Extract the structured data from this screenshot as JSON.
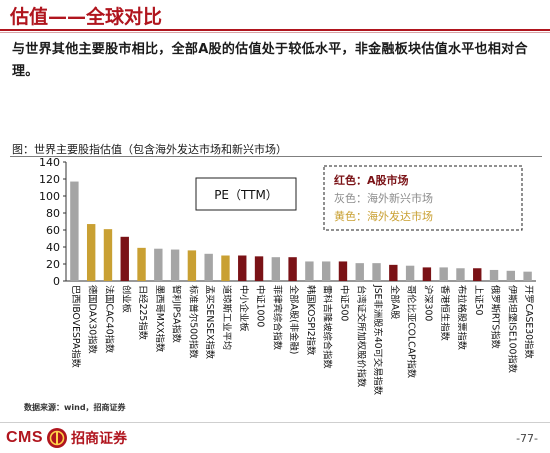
{
  "title": "估值——全球对比",
  "summary": "与世界其他主要股市相比，全部A股的估值处于较低水平，非金融板块估值水平也相对合理。",
  "chart_caption": "图：世界主要股指估值（包含海外发达市场和新兴市场）",
  "pe_label": "PE（TTM）",
  "legend": [
    {
      "label": "红色：A股市场",
      "color": "#7a1216"
    },
    {
      "label": "灰色：海外新兴市场",
      "color": "#8c8c8c"
    },
    {
      "label": "黄色：海外发达市场",
      "color": "#c9a033"
    }
  ],
  "colors": {
    "gray": "#a5a5a5",
    "gold": "#c9a033",
    "red": "#7a1216",
    "accent": "#b0151e"
  },
  "chart_data": {
    "type": "bar",
    "ylim": [
      0,
      140
    ],
    "yticks": [
      0,
      20,
      40,
      60,
      80,
      100,
      120,
      140
    ],
    "grid": false,
    "categories": [
      "巴西IBOVESPA指数",
      "德国DAX30指数",
      "法国CAC40指数",
      "创业板",
      "日经225指数",
      "墨西哥MXX指数",
      "智利IPSA指数",
      "标准普尔500指数",
      "孟买SENSEX指数",
      "道琼斯工业平均",
      "中小企业板",
      "中证1000",
      "菲律宾综合指数",
      "全部A股(非金融)",
      "韩国KOSPI2指数",
      "雷科吉隆坡综合指数",
      "中证500",
      "台湾证交所加权股价指数",
      "JSE非洲股东40可交易指数",
      "全部A股",
      "哥伦比亚COLCAP指数",
      "沪深300",
      "香港恒生指数",
      "布拉格股票指数",
      "上证50",
      "俄罗斯RTS指数",
      "伊斯坦堡ISE100指数",
      "开罗CASE30指数"
    ],
    "values": [
      117,
      67,
      61,
      52,
      39,
      38,
      37,
      36,
      32,
      30,
      30,
      29,
      28,
      28,
      23,
      23,
      23,
      21,
      21,
      19,
      18,
      16,
      16,
      15,
      15,
      13,
      12,
      11
    ],
    "groups": [
      "gray",
      "gold",
      "gold",
      "red",
      "gold",
      "gray",
      "gray",
      "gold",
      "gray",
      "gold",
      "red",
      "red",
      "gray",
      "red",
      "gray",
      "gray",
      "red",
      "gray",
      "gray",
      "red",
      "gray",
      "red",
      "gray",
      "gray",
      "red",
      "gray",
      "gray",
      "gray"
    ]
  },
  "source": "数据来源：wind，招商证券",
  "footer": {
    "brand": "CMS",
    "brand_cn": "招商证券",
    "page": "-77-"
  }
}
